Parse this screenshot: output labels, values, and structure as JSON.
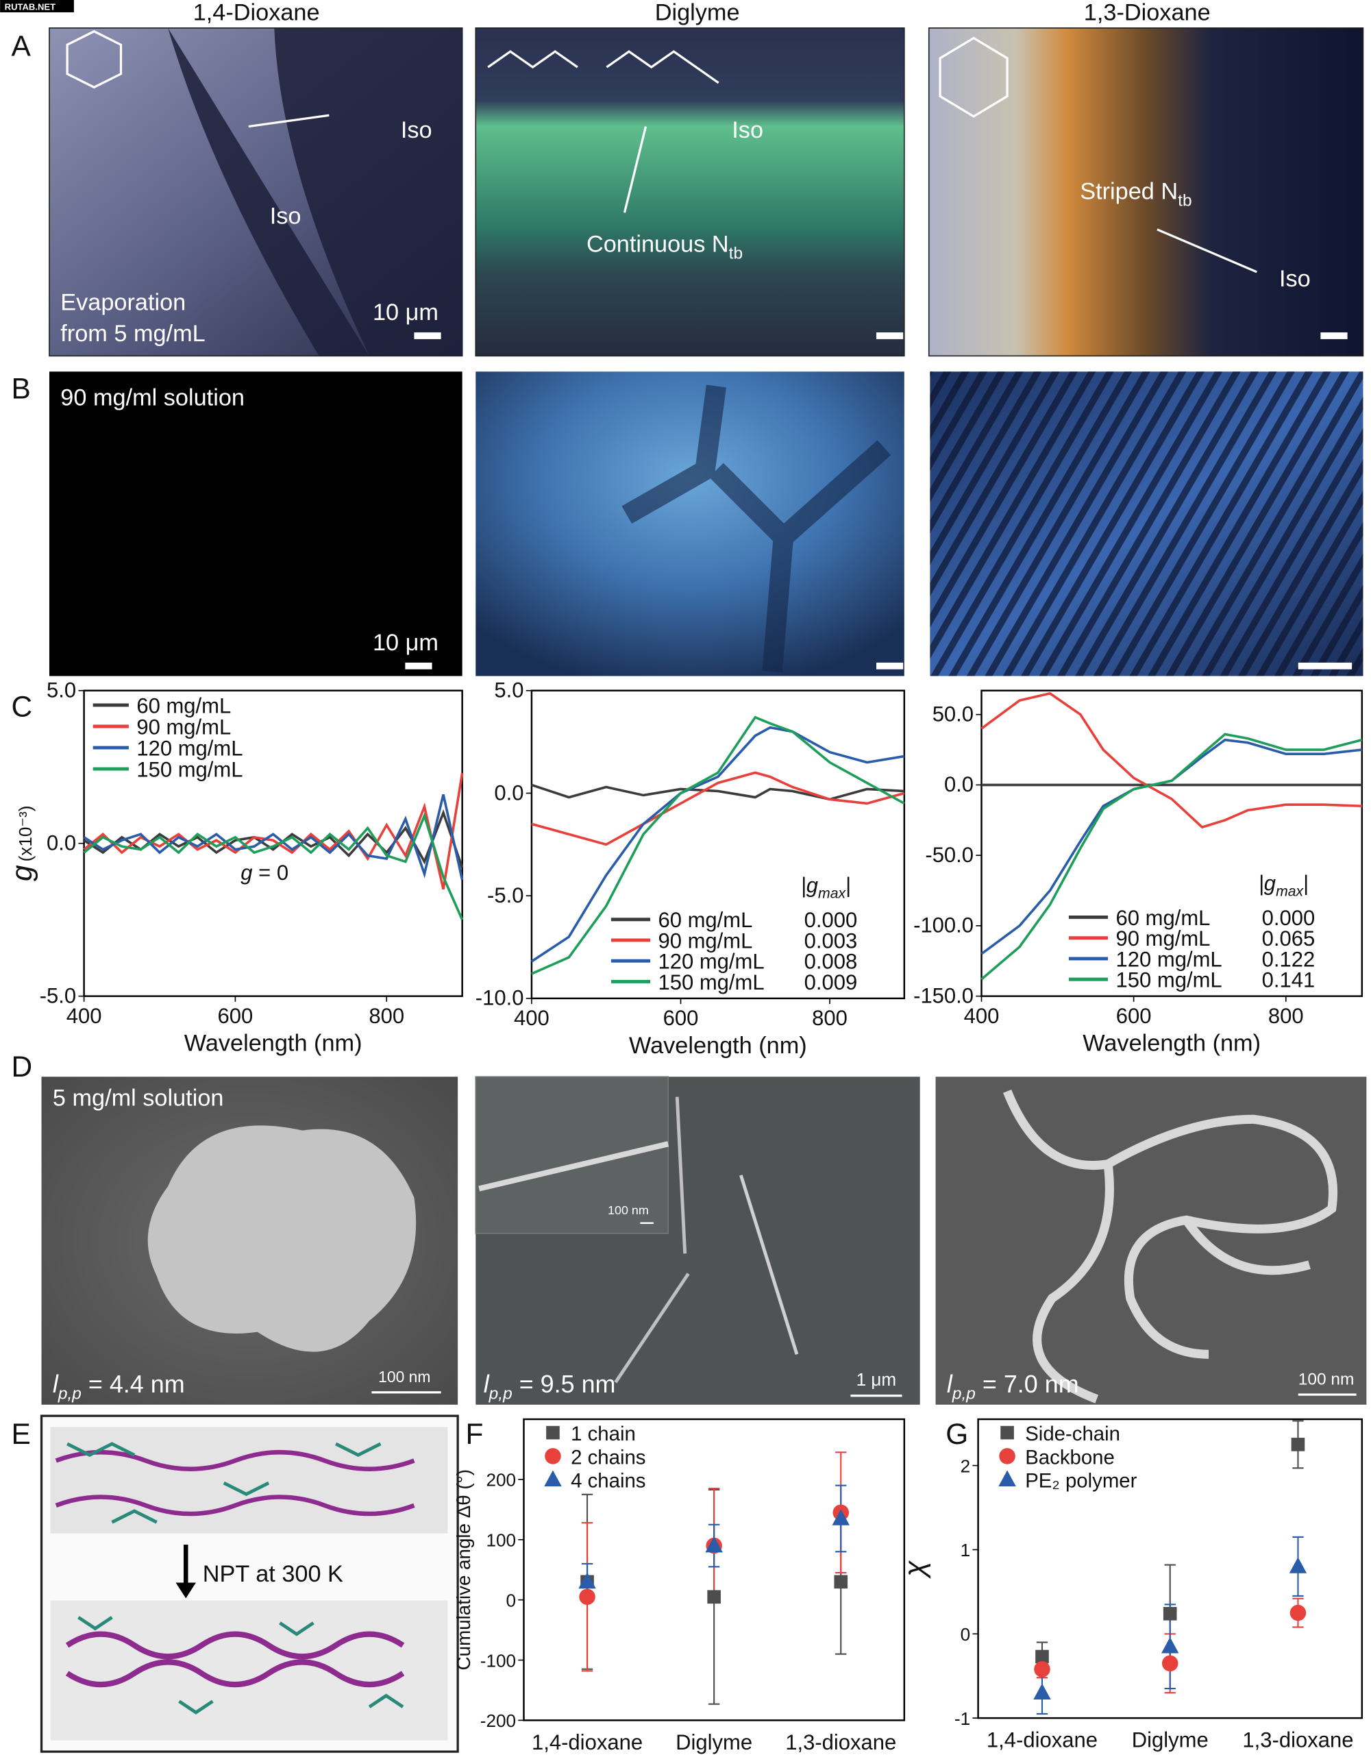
{
  "figure": {
    "watermark": "RUTAB.NET",
    "columns": [
      "1,4-Dioxane",
      "Diglyme",
      "1,3-Dioxane"
    ],
    "panel_letters": [
      "A",
      "B",
      "C",
      "D",
      "E",
      "F",
      "G"
    ],
    "a": {
      "left": {
        "iso_1": "Iso",
        "iso_2": "Iso",
        "note": [
          "Evaporation",
          "from 5 mg/mL"
        ],
        "scale": "10 μm"
      },
      "middle": {
        "iso": "Iso",
        "phase": {
          "text": "Continuous N",
          "sub": "tb"
        }
      },
      "right": {
        "phase": {
          "text": "Striped N",
          "sub": "tb"
        },
        "iso": "Iso"
      }
    },
    "b": {
      "note": "90 mg/ml solution",
      "scale": "10 μm"
    },
    "d": {
      "note": "5 mg/ml solution",
      "panels": [
        {
          "lpp": {
            "symbol": "l",
            "sub": "p,p",
            "rest": " = 4.4 nm"
          },
          "scale": "100 nm"
        },
        {
          "inset_scale": "100 nm",
          "lpp": {
            "symbol": "l",
            "sub": "p,p",
            "rest": " = 9.5 nm"
          },
          "scale": "1 μm"
        },
        {
          "lpp": {
            "symbol": "l",
            "sub": "p,p",
            "rest": " = 7.0 nm"
          },
          "scale": "100 nm"
        }
      ]
    },
    "e": {
      "step": "NPT at 300 K"
    }
  },
  "chart_data": [
    {
      "type": "line",
      "ylabel": "g",
      "ylabel_unit": "(x10⁻³)",
      "xlabel": "Wavelength (nm)",
      "annotation": {
        "symbol": "g",
        "rest": " = 0"
      },
      "xlim": [
        400,
        900
      ],
      "xticks": [
        400,
        600,
        800
      ],
      "ylim": [
        -5,
        5
      ],
      "yticks": [
        {
          "value": 5,
          "label": "5.0"
        },
        {
          "value": 0,
          "label": "0.0"
        },
        {
          "value": -5,
          "label": "-5.0"
        }
      ],
      "legend": "upper left",
      "x": [
        400,
        425,
        450,
        475,
        500,
        525,
        550,
        575,
        600,
        625,
        650,
        675,
        700,
        725,
        750,
        775,
        800,
        825,
        850,
        875,
        900
      ],
      "series": [
        {
          "name": "60 mg/mL",
          "color": "#3c3c3c",
          "values": [
            0.1,
            -0.3,
            0.2,
            -0.2,
            0.3,
            -0.1,
            0.2,
            -0.3,
            0.1,
            0.2,
            -0.2,
            0.3,
            -0.1,
            0.2,
            -0.4,
            0.3,
            -0.3,
            0.5,
            -0.6,
            1.0,
            -0.8
          ]
        },
        {
          "name": "90 mg/mL",
          "color": "#e8413c",
          "values": [
            -0.2,
            0.3,
            -0.3,
            0.2,
            -0.1,
            0.3,
            -0.2,
            0.1,
            -0.3,
            0.2,
            0.1,
            -0.3,
            0.3,
            -0.2,
            0.4,
            -0.5,
            0.6,
            -0.4,
            1.2,
            -1.5,
            2.3
          ]
        },
        {
          "name": "120 mg/mL",
          "color": "#2a5caa",
          "values": [
            0.2,
            -0.2,
            0.1,
            0.3,
            -0.3,
            0.2,
            -0.1,
            0.3,
            -0.2,
            -0.1,
            0.3,
            -0.2,
            0.2,
            -0.3,
            0.3,
            -0.4,
            -0.5,
            0.8,
            -1.0,
            1.6,
            -1.2
          ]
        },
        {
          "name": "150 mg/mL",
          "color": "#1f9e5b",
          "values": [
            -0.3,
            0.2,
            -0.1,
            -0.2,
            0.2,
            -0.3,
            0.3,
            -0.1,
            0.2,
            -0.3,
            -0.1,
            0.2,
            -0.3,
            0.3,
            -0.2,
            0.5,
            -0.4,
            -0.6,
            0.9,
            -1.1,
            -2.5
          ]
        }
      ]
    },
    {
      "type": "line",
      "xlabel": "Wavelength (nm)",
      "legend_title": {
        "pre": "|g",
        "sub": "max",
        "post": "|"
      },
      "xlim": [
        400,
        900
      ],
      "xticks": [
        400,
        600,
        800
      ],
      "ylim": [
        -10,
        5
      ],
      "yticks": [
        {
          "value": 5,
          "label": "5.0"
        },
        {
          "value": 0,
          "label": "0.0"
        },
        {
          "value": -5,
          "label": "-5.0"
        },
        {
          "value": -10,
          "label": "-10.0"
        }
      ],
      "legend": "lower right",
      "x": [
        400,
        450,
        500,
        550,
        600,
        650,
        700,
        720,
        750,
        800,
        850,
        900
      ],
      "series": [
        {
          "name": "60 mg/mL",
          "gmax": "0.000",
          "color": "#3c3c3c",
          "values": [
            0.4,
            -0.2,
            0.3,
            -0.1,
            0.2,
            0.1,
            -0.2,
            0.2,
            0.1,
            -0.3,
            0.2,
            0.1
          ]
        },
        {
          "name": "90 mg/mL",
          "gmax": "0.003",
          "color": "#e8413c",
          "values": [
            -1.5,
            -2,
            -2.5,
            -1.5,
            -0.5,
            0.5,
            1,
            0.8,
            0.3,
            -0.3,
            -0.5,
            0
          ]
        },
        {
          "name": "120 mg/mL",
          "gmax": "0.008",
          "color": "#2a5caa",
          "values": [
            -8.2,
            -7,
            -4,
            -1.5,
            0,
            0.8,
            2.8,
            3.2,
            3,
            2,
            1.5,
            1.8
          ]
        },
        {
          "name": "150 mg/mL",
          "gmax": "0.009",
          "color": "#1f9e5b",
          "values": [
            -8.8,
            -8,
            -5.5,
            -2,
            0,
            1,
            3.7,
            3.4,
            3,
            1.5,
            0.5,
            -0.5
          ]
        }
      ]
    },
    {
      "type": "line",
      "xlabel": "Wavelength (nm)",
      "legend_title": {
        "pre": "|g",
        "sub": "max",
        "post": "|"
      },
      "xlim": [
        400,
        900
      ],
      "xticks": [
        400,
        600,
        800
      ],
      "ylim": [
        -150,
        67
      ],
      "yticks": [
        {
          "value": 50,
          "label": "50.0"
        },
        {
          "value": 0,
          "label": "0.0"
        },
        {
          "value": -50,
          "label": "-50.0"
        },
        {
          "value": -100,
          "label": "-100.0"
        },
        {
          "value": -150,
          "label": "-150.0"
        }
      ],
      "legend": "lower right",
      "x": [
        400,
        450,
        490,
        530,
        560,
        600,
        650,
        690,
        720,
        750,
        800,
        850,
        900
      ],
      "series": [
        {
          "name": "60 mg/mL",
          "gmax": "0.000",
          "color": "#3c3c3c",
          "values": [
            0,
            0,
            0,
            0,
            0,
            0,
            0,
            0,
            0,
            0,
            0,
            0,
            0
          ]
        },
        {
          "name": "90 mg/mL",
          "gmax": "0.065",
          "color": "#e8413c",
          "values": [
            40,
            60,
            65,
            50,
            25,
            5,
            -10,
            -30,
            -25,
            -18,
            -14,
            -14,
            -15
          ]
        },
        {
          "name": "120 mg/mL",
          "gmax": "0.122",
          "color": "#2a5caa",
          "values": [
            -120,
            -100,
            -75,
            -40,
            -15,
            -3,
            3,
            20,
            32,
            30,
            22,
            22,
            25
          ]
        },
        {
          "name": "150 mg/mL",
          "gmax": "0.141",
          "color": "#1f9e5b",
          "values": [
            -138,
            -115,
            -85,
            -45,
            -17,
            -3,
            3,
            22,
            36,
            33,
            25,
            25,
            32
          ]
        }
      ]
    },
    {
      "type": "errorbar",
      "ylabel": "Cumulative angle Δθ (°)",
      "categories": [
        "1,4-dioxane",
        "Diglyme",
        "1,3-dioxane"
      ],
      "ylim": [
        -200,
        300
      ],
      "yticks": [
        -200,
        -100,
        0,
        100,
        200
      ],
      "legend": "upper left",
      "series": [
        {
          "name": "1 chain",
          "marker": "square",
          "color": "#4d4d4d",
          "values": [
            30,
            5,
            30
          ],
          "errors": [
            145,
            178,
            120
          ]
        },
        {
          "name": "2 chains",
          "marker": "circle",
          "color": "#e8413c",
          "values": [
            5,
            90,
            145
          ],
          "errors": [
            123,
            95,
            100
          ]
        },
        {
          "name": "4 chains",
          "marker": "triangle",
          "color": "#2a5caa",
          "values": [
            30,
            90,
            135
          ],
          "errors": [
            30,
            35,
            55
          ]
        }
      ]
    },
    {
      "type": "errorbar",
      "ylabel": "χ",
      "categories": [
        "1,4-dioxane",
        "Diglyme",
        "1,3-dioxane"
      ],
      "ylim": [
        -1,
        2.55
      ],
      "yticks": [
        -1,
        0,
        1,
        2
      ],
      "legend": "upper left",
      "series": [
        {
          "name": "Side-chain",
          "marker": "square",
          "color": "#4d4d4d",
          "values": [
            -0.27,
            0.24,
            2.25
          ],
          "errors": [
            0.17,
            0.58,
            0.28
          ]
        },
        {
          "name": "Backbone",
          "marker": "circle",
          "color": "#e8413c",
          "values": [
            -0.42,
            -0.35,
            0.25
          ],
          "errors": [
            0.1,
            0.35,
            0.17
          ]
        },
        {
          "name": "PE₂ polymer",
          "marker": "triangle",
          "color": "#2a5caa",
          "values": [
            -0.7,
            -0.15,
            0.8
          ],
          "errors": [
            0.25,
            0.5,
            0.35
          ]
        }
      ]
    }
  ]
}
